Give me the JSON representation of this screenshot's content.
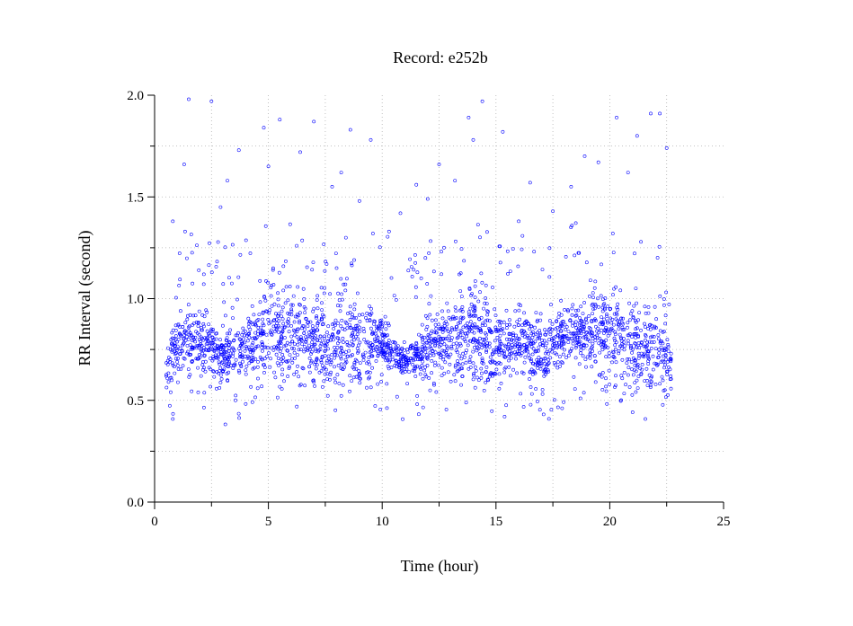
{
  "chart_data": {
    "type": "scatter",
    "title": "Record:  e252b",
    "xlabel": "Time (hour)",
    "ylabel": "RR Interval (second)",
    "xlim": [
      0,
      25
    ],
    "ylim": [
      0,
      2
    ],
    "x_ticks": [
      "0",
      "5",
      "10",
      "15",
      "20",
      "25"
    ],
    "y_ticks": [
      "0.0",
      "0.5",
      "1.0",
      "1.5",
      "2.0"
    ],
    "grid": true,
    "marker": "open-circle",
    "series_color": "#0000ff",
    "axis_color": "#000000",
    "grid_color": "#b0b0b0",
    "series": [
      {
        "name": "",
        "x_range": [
          0.5,
          22.7
        ],
        "trend": [
          [
            0.5,
            0.67
          ],
          [
            1.0,
            0.78
          ],
          [
            2.0,
            0.8
          ],
          [
            3.0,
            0.72
          ],
          [
            4.0,
            0.76
          ],
          [
            5.0,
            0.83
          ],
          [
            6.0,
            0.82
          ],
          [
            7.0,
            0.8
          ],
          [
            8.0,
            0.79
          ],
          [
            9.0,
            0.8
          ],
          [
            10.0,
            0.78
          ],
          [
            11.0,
            0.68
          ],
          [
            12.0,
            0.77
          ],
          [
            13.0,
            0.8
          ],
          [
            14.0,
            0.85
          ],
          [
            15.0,
            0.75
          ],
          [
            16.0,
            0.8
          ],
          [
            17.0,
            0.72
          ],
          [
            18.0,
            0.8
          ],
          [
            19.0,
            0.85
          ],
          [
            20.0,
            0.82
          ],
          [
            21.0,
            0.76
          ],
          [
            22.0,
            0.75
          ],
          [
            22.7,
            0.72
          ]
        ],
        "outliers": [
          [
            1.5,
            1.98
          ],
          [
            2.5,
            1.97
          ],
          [
            5.5,
            1.88
          ],
          [
            7.0,
            1.87
          ],
          [
            8.6,
            1.83
          ],
          [
            9.5,
            1.78
          ],
          [
            13.8,
            1.89
          ],
          [
            14.4,
            1.97
          ],
          [
            14.0,
            1.78
          ],
          [
            15.3,
            1.82
          ],
          [
            20.3,
            1.89
          ],
          [
            21.8,
            1.91
          ],
          [
            22.2,
            1.91
          ],
          [
            21.2,
            1.8
          ],
          [
            18.9,
            1.7
          ],
          [
            4.8,
            1.84
          ],
          [
            3.2,
            1.58
          ],
          [
            12.5,
            1.66
          ],
          [
            11.5,
            1.56
          ],
          [
            10.8,
            1.42
          ],
          [
            1.3,
            1.66
          ],
          [
            6.4,
            1.72
          ],
          [
            16.5,
            1.57
          ],
          [
            17.5,
            1.43
          ],
          [
            2.9,
            1.45
          ],
          [
            8.2,
            1.62
          ],
          [
            9.0,
            1.48
          ],
          [
            12.0,
            1.49
          ],
          [
            16.0,
            1.38
          ],
          [
            19.5,
            1.67
          ],
          [
            0.8,
            1.38
          ],
          [
            3.7,
            1.73
          ],
          [
            5.0,
            1.65
          ],
          [
            7.8,
            1.55
          ],
          [
            13.2,
            1.58
          ],
          [
            18.3,
            1.55
          ],
          [
            20.8,
            1.62
          ],
          [
            22.5,
            1.74
          ],
          [
            10.3,
            1.33
          ],
          [
            11.9,
            1.2
          ]
        ]
      }
    ]
  }
}
